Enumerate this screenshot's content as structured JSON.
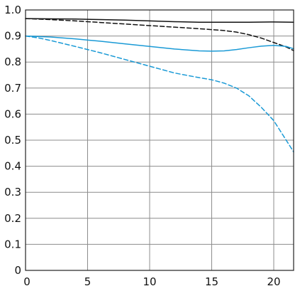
{
  "chart_data": {
    "type": "line",
    "title": "",
    "xlabel": "",
    "ylabel": "",
    "xlim": [
      0,
      21.6
    ],
    "ylim": [
      0,
      1.0
    ],
    "x_ticks": [
      0,
      5,
      10,
      15,
      20
    ],
    "x_tick_labels": [
      "0",
      "5",
      "10",
      "15",
      "20"
    ],
    "y_ticks": [
      0,
      0.1,
      0.2,
      0.3,
      0.4,
      0.5,
      0.6,
      0.7,
      0.8,
      0.9,
      1.0
    ],
    "y_tick_labels": [
      "0",
      "0.1",
      "0.2",
      "0.3",
      "0.4",
      "0.5",
      "0.6",
      "0.7",
      "0.8",
      "0.9",
      "1.0"
    ],
    "grid": true,
    "legend": "none",
    "series": [
      {
        "color": "#111111",
        "dash": "solid",
        "x": [
          0,
          2,
          4,
          6,
          8,
          10,
          12,
          14,
          16,
          18,
          20,
          21.6
        ],
        "y": [
          0.967,
          0.966,
          0.965,
          0.963,
          0.961,
          0.958,
          0.955,
          0.953,
          0.953,
          0.953,
          0.954,
          0.953
        ]
      },
      {
        "color": "#111111",
        "dash": "dashed",
        "x": [
          0,
          2,
          4,
          6,
          8,
          10,
          12,
          14,
          16,
          17,
          18,
          19,
          20,
          21,
          21.6
        ],
        "y": [
          0.967,
          0.963,
          0.958,
          0.952,
          0.946,
          0.94,
          0.934,
          0.928,
          0.921,
          0.915,
          0.905,
          0.892,
          0.875,
          0.858,
          0.844
        ]
      },
      {
        "color": "#1a9ad6",
        "dash": "solid",
        "x": [
          0,
          2,
          4,
          6,
          8,
          10,
          12,
          14,
          15,
          16,
          17,
          18,
          19,
          20,
          21,
          21.6
        ],
        "y": [
          0.9,
          0.896,
          0.889,
          0.88,
          0.87,
          0.86,
          0.85,
          0.843,
          0.842,
          0.843,
          0.848,
          0.855,
          0.861,
          0.864,
          0.86,
          0.851
        ]
      },
      {
        "color": "#1a9ad6",
        "dash": "dashed",
        "x": [
          0,
          1,
          2,
          4,
          6,
          8,
          10,
          12,
          14,
          15,
          16,
          17,
          18,
          19,
          20,
          21,
          21.6
        ],
        "y": [
          0.9,
          0.893,
          0.883,
          0.86,
          0.836,
          0.81,
          0.784,
          0.758,
          0.74,
          0.732,
          0.719,
          0.7,
          0.67,
          0.626,
          0.575,
          0.5,
          0.455
        ]
      }
    ]
  }
}
